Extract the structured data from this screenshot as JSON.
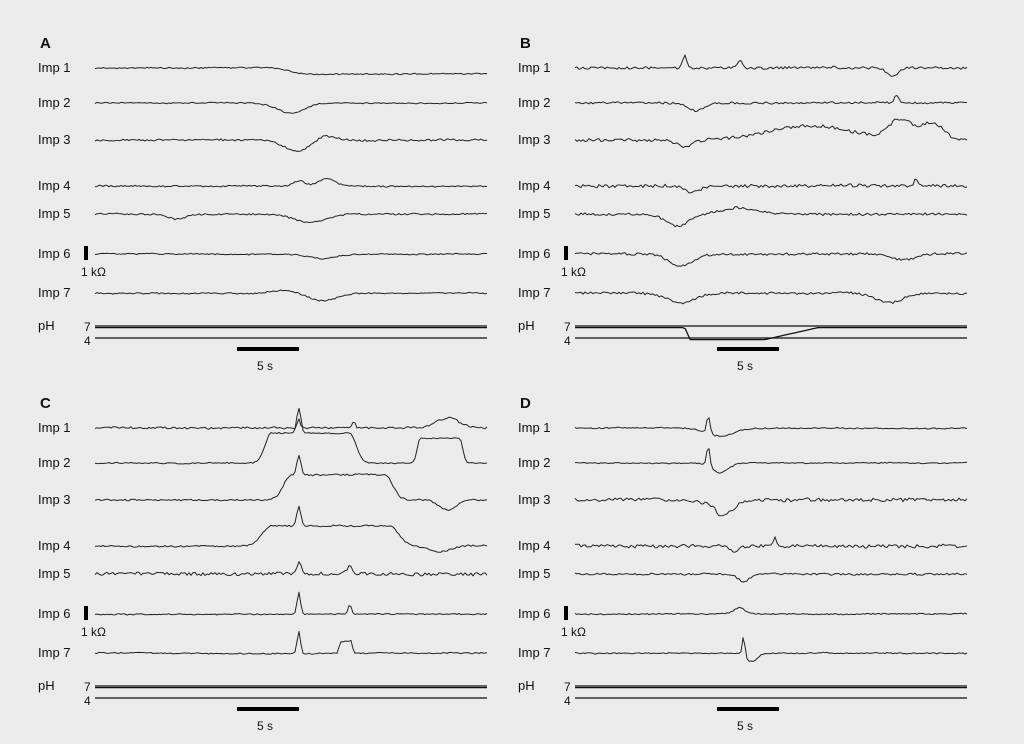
{
  "chart_data": [
    {
      "type": "line",
      "panel": "A",
      "channels": [
        "Imp 1",
        "Imp 2",
        "Imp 3",
        "Imp 4",
        "Imp 5",
        "Imp 6",
        "Imp 7"
      ],
      "impedance_scale_label": "1 kΩ",
      "time_scale_label": "5 s",
      "ph_label": "pH",
      "ph_ticks": [
        "7",
        "4"
      ],
      "ph_events": []
    },
    {
      "type": "line",
      "panel": "B",
      "channels": [
        "Imp 1",
        "Imp 2",
        "Imp 3",
        "Imp 4",
        "Imp 5",
        "Imp 6",
        "Imp 7"
      ],
      "impedance_scale_label": "1 kΩ",
      "time_scale_label": "5 s",
      "ph_label": "pH",
      "ph_ticks": [
        "7",
        "4"
      ],
      "ph_events": [
        {
          "start_frac": 0.28,
          "end_frac": 0.62,
          "min_ph": 3.6
        }
      ]
    },
    {
      "type": "line",
      "panel": "C",
      "channels": [
        "Imp 1",
        "Imp 2",
        "Imp 3",
        "Imp 4",
        "Imp 5",
        "Imp 6",
        "Imp 7"
      ],
      "impedance_scale_label": "1 kΩ",
      "time_scale_label": "5 s",
      "ph_label": "pH",
      "ph_ticks": [
        "7",
        "4"
      ],
      "ph_events": []
    },
    {
      "type": "line",
      "panel": "D",
      "channels": [
        "Imp 1",
        "Imp 2",
        "Imp 3",
        "Imp 4",
        "Imp 5",
        "Imp 6",
        "Imp 7"
      ],
      "impedance_scale_label": "1 kΩ",
      "time_scale_label": "5 s",
      "ph_label": "pH",
      "ph_ticks": [
        "7",
        "4"
      ],
      "ph_events": []
    }
  ]
}
